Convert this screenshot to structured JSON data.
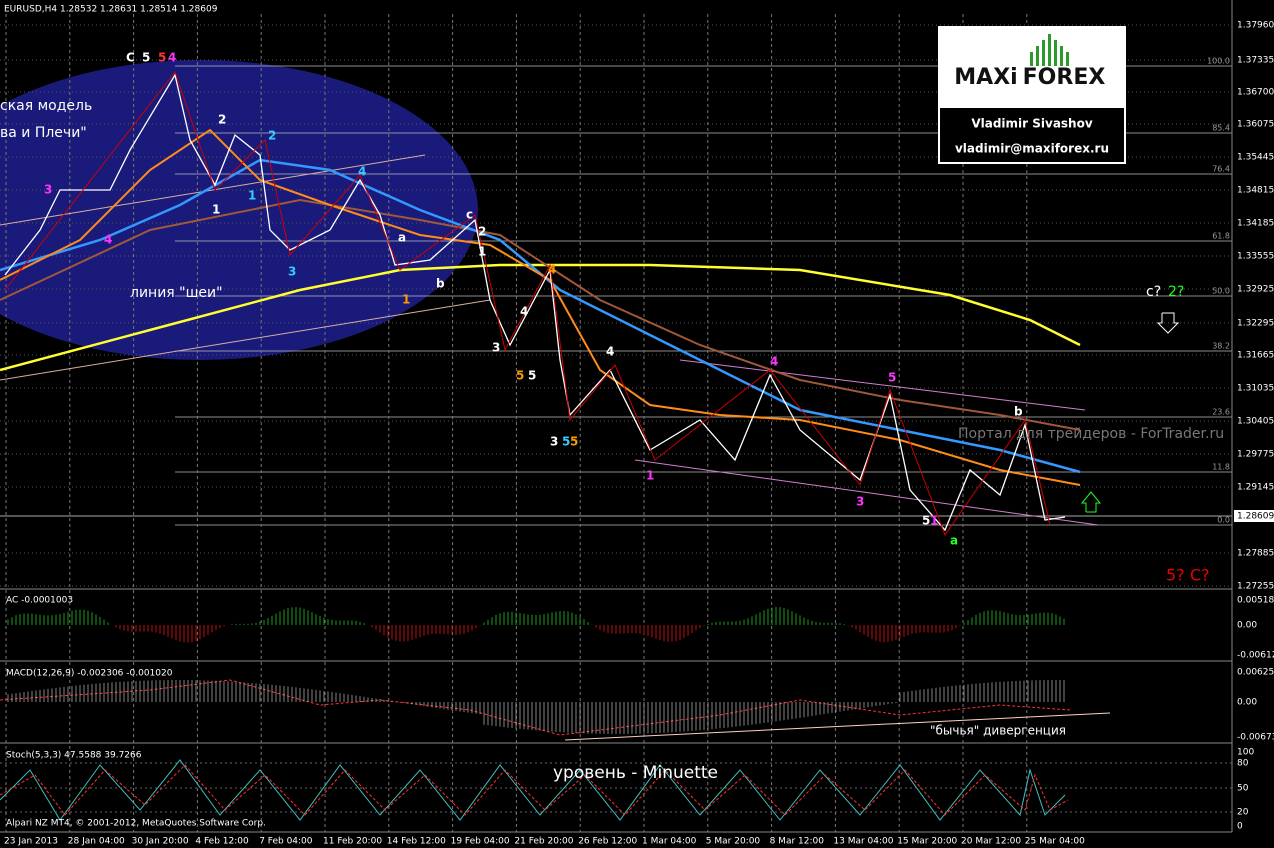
{
  "header": "EURUSD,H4  1.28532 1.28631 1.28514 1.28609",
  "price_axis": [
    "1.37960",
    "1.37335",
    "1.36700",
    "1.36075",
    "1.35445",
    "1.34815",
    "1.34185",
    "1.33555",
    "1.32925",
    "1.32295",
    "1.31665",
    "1.31035",
    "1.30405",
    "1.29775",
    "1.29145",
    "1.28609",
    "1.27885",
    "1.27255"
  ],
  "fib_levels": [
    "100.0",
    "85.4",
    "76.4",
    "61.8",
    "50.0",
    "38.2",
    "23.6",
    "11.8",
    "0.0"
  ],
  "panels": {
    "ac": {
      "label": "AC -0.0001003",
      "ticks": [
        "0.00518",
        "0.00",
        "-0.00612"
      ]
    },
    "macd": {
      "label": "MACD(12,26,9) -0.002306 -0.001020",
      "ticks": [
        "0.00625",
        "0.00",
        "-0.00673"
      ]
    },
    "stoch": {
      "label": "Stoch(5,3,3) 47.5588 39.7266",
      "ticks": [
        "100",
        "80",
        "50",
        "20",
        "0"
      ]
    }
  },
  "dates": [
    "23 Jan 2013",
    "28 Jan 04:00",
    "30 Jan 20:00",
    "4 Feb 12:00",
    "7 Feb 04:00",
    "11 Feb 20:00",
    "14 Feb 12:00",
    "19 Feb 04:00",
    "21 Feb 20:00",
    "26 Feb 12:00",
    "1 Mar 04:00",
    "5 Mar 20:00",
    "8 Mar 12:00",
    "13 Mar 04:00",
    "15 Mar 20:00",
    "20 Mar 12:00",
    "25 Mar 04:00"
  ],
  "annotations": [
    "ская модель",
    "ва и Плечи\"",
    "линия \"шеи\"",
    "c?",
    "2?",
    "5?",
    "C?",
    "Портал для трейдеров - ForTrader.ru",
    "\"бычья\" дивергенция",
    "уровень - Minuette"
  ],
  "waves": [
    "C",
    "5",
    "5",
    "4",
    "2",
    "2",
    "1",
    "1",
    "3",
    "3",
    "4",
    "4",
    "a",
    "b",
    "1",
    "c",
    "2",
    "1",
    "4",
    "4",
    "3",
    "5",
    "5",
    "3",
    "5",
    "5",
    "1",
    "4",
    "4",
    "3",
    "5",
    "5",
    "1",
    "a",
    "b"
  ],
  "logo": {
    "brand_left": "MAXi",
    "brand_right": "FOREX",
    "name": "Vladimir Sivashov",
    "email": "vladimir@maxiforex.ru"
  },
  "copyright": "Alpari NZ MT4, © 2001-2012, MetaQuotes Software Corp."
}
